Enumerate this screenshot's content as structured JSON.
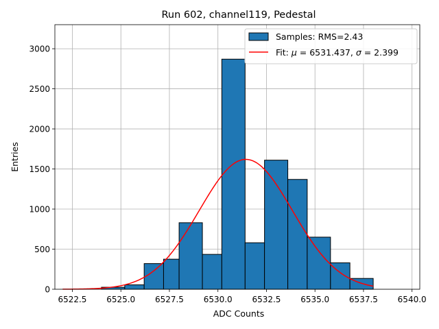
{
  "chart_data": {
    "type": "bar",
    "title": "Run 602, channel119, Pedestal",
    "xlabel": "ADC Counts",
    "ylabel": "Entries",
    "xlim": [
      6521.6,
      6540.4
    ],
    "ylim": [
      0,
      3300
    ],
    "grid": true,
    "legend_position": "top-right",
    "x_ticks": [
      6522.5,
      6525.0,
      6527.5,
      6530.0,
      6532.5,
      6535.0,
      6537.5,
      6540.0
    ],
    "x_tick_labels": [
      "6522.5",
      "6525.0",
      "6527.5",
      "6530.0",
      "6532.5",
      "6535.0",
      "6537.5",
      "6540.0"
    ],
    "y_ticks": [
      0,
      500,
      1000,
      1500,
      2000,
      2500,
      3000
    ],
    "y_tick_labels": [
      "0",
      "500",
      "1000",
      "1500",
      "2000",
      "2500",
      "3000"
    ],
    "bin_edges": [
      6524.0,
      6525.2,
      6526.2,
      6527.2,
      6528.0,
      6529.2,
      6530.2,
      6531.4,
      6532.4,
      6533.6,
      6534.6,
      6535.8,
      6536.8,
      6538.0
    ],
    "counts": [
      25,
      55,
      320,
      375,
      830,
      435,
      2870,
      580,
      1610,
      1370,
      650,
      330,
      135,
      150
    ],
    "bar_color": "#1f77b4",
    "edge_color": "#000000",
    "fit": {
      "mu": 6531.437,
      "sigma": 2.399,
      "amplitude": 1620,
      "x_range": [
        6522.0,
        6538.0
      ],
      "color": "#ff0000"
    },
    "legend": [
      {
        "label": "Samples: RMS=2.43",
        "kind": "bar"
      },
      {
        "label_prefix": "Fit: ",
        "label_greek1": "μ",
        "label_mid": " = 6531.437, ",
        "label_greek2": "σ",
        "label_suffix": " = 2.399",
        "kind": "line"
      }
    ]
  }
}
